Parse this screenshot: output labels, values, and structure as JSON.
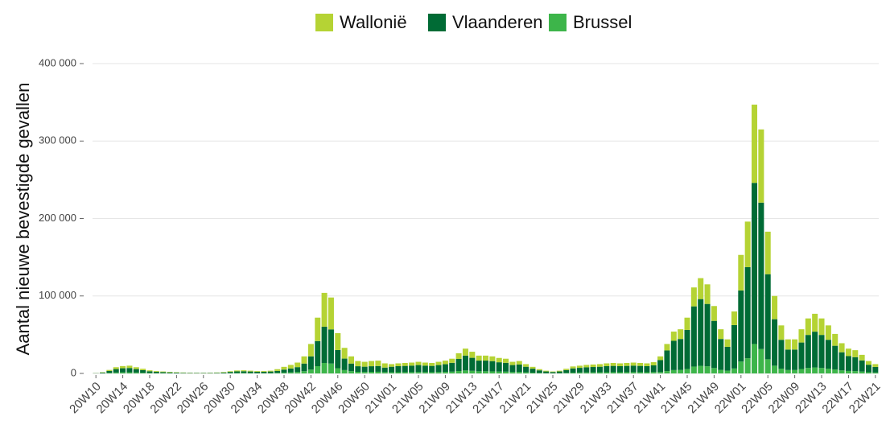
{
  "chart_data": {
    "type": "stacked-bar",
    "y_label": "Aantal nieuwe bevestigde gevallen",
    "categories": [
      "20W10",
      null,
      null,
      null,
      "20W14",
      null,
      null,
      null,
      "20W18",
      null,
      null,
      null,
      "20W22",
      null,
      null,
      null,
      "20W26",
      null,
      null,
      null,
      "20W30",
      null,
      null,
      null,
      "20W34",
      null,
      null,
      null,
      "20W38",
      null,
      null,
      null,
      "20W42",
      null,
      null,
      null,
      "20W46",
      null,
      null,
      null,
      "20W50",
      null,
      null,
      null,
      "21W01",
      null,
      null,
      null,
      "21W05",
      null,
      null,
      null,
      "21W09",
      null,
      null,
      null,
      "21W13",
      null,
      null,
      null,
      "21W17",
      null,
      null,
      null,
      "21W21",
      null,
      null,
      null,
      "21W25",
      null,
      null,
      null,
      "21W29",
      null,
      null,
      null,
      "21W33",
      null,
      null,
      null,
      "21W37",
      null,
      null,
      null,
      "21W41",
      null,
      null,
      null,
      "21W45",
      null,
      null,
      null,
      "21W49",
      null,
      null,
      null,
      "22W01",
      null,
      null,
      null,
      "22W05",
      null,
      null,
      null,
      "22W09",
      null,
      null,
      null,
      "22W13",
      null,
      null,
      null,
      "22W17",
      null,
      null,
      null,
      "22W21"
    ],
    "series": [
      {
        "name": "Wallonië",
        "color": "#b5d334",
        "values": [
          140,
          440,
          1340,
          2400,
          2840,
          3000,
          2400,
          1800,
          1200,
          900,
          740,
          600,
          440,
          360,
          300,
          260,
          260,
          300,
          360,
          540,
          840,
          1140,
          1200,
          1040,
          900,
          900,
          1040,
          2300,
          3560,
          4620,
          5880,
          9240,
          15960,
          30240,
          43680,
          41160,
          21840,
          13860,
          9240,
          6720,
          6300,
          6720,
          6920,
          5460,
          3360,
          3640,
          3780,
          3920,
          4200,
          3920,
          3780,
          4200,
          4620,
          5320,
          7280,
          8960,
          7840,
          6440,
          6440,
          6160,
          5600,
          5320,
          4200,
          4480,
          3360,
          2380,
          1540,
          980,
          700,
          980,
          1680,
          2520,
          2800,
          3080,
          3220,
          3360,
          3640,
          3780,
          3640,
          3780,
          3920,
          3780,
          3640,
          4060,
          4840,
          8360,
          11880,
          12540,
          15840,
          24420,
          27060,
          25300,
          19140,
          12540,
          9680,
          17600,
          45900,
          58800,
          101000,
          94500,
          54900,
          30000,
          18600,
          13200,
          13200,
          17100,
          21300,
          23100,
          21300,
          18600,
          15300,
          11700,
          9600,
          9000,
          7200,
          4800,
          3600
        ]
      },
      {
        "name": "Vlaanderen",
        "color": "#006b35",
        "values": [
          280,
          830,
          2480,
          4400,
          5230,
          5500,
          4400,
          3300,
          2200,
          1650,
          1380,
          1100,
          830,
          660,
          550,
          500,
          500,
          550,
          660,
          990,
          1540,
          2090,
          2200,
          1930,
          1650,
          1650,
          1930,
          2480,
          3830,
          4950,
          6300,
          9900,
          17100,
          32400,
          46800,
          44100,
          23400,
          14850,
          9900,
          7200,
          6750,
          7200,
          7430,
          5850,
          7200,
          7800,
          8100,
          8400,
          9000,
          8400,
          8100,
          9000,
          9900,
          11400,
          15600,
          19200,
          16800,
          13800,
          13800,
          13200,
          12000,
          11400,
          9000,
          9600,
          7200,
          5100,
          3300,
          2100,
          1500,
          2100,
          3600,
          5400,
          6000,
          6600,
          6900,
          7200,
          7800,
          8100,
          7800,
          8100,
          8400,
          8100,
          7800,
          8700,
          15400,
          26600,
          37800,
          39900,
          50400,
          77700,
          86100,
          80500,
          60900,
          39900,
          30800,
          56000,
          91800,
          117600,
          208000,
          189000,
          109800,
          60000,
          37200,
          26400,
          26400,
          34200,
          42600,
          46200,
          42600,
          37200,
          30600,
          23400,
          19200,
          18000,
          14400,
          9600,
          7200
        ]
      },
      {
        "name": "Brussel",
        "color": "#3db54a",
        "values": [
          80,
          230,
          680,
          1200,
          1430,
          1500,
          1200,
          900,
          600,
          450,
          380,
          300,
          230,
          180,
          150,
          140,
          140,
          150,
          180,
          270,
          420,
          570,
          600,
          530,
          450,
          450,
          530,
          720,
          1110,
          1430,
          1820,
          2860,
          4940,
          9360,
          13520,
          12740,
          6760,
          4290,
          2860,
          2080,
          1950,
          2080,
          2150,
          1690,
          1440,
          1560,
          1620,
          1680,
          1800,
          1680,
          1620,
          1800,
          1980,
          2280,
          3120,
          3840,
          3360,
          2760,
          2760,
          2640,
          2400,
          2280,
          1800,
          1920,
          1440,
          1020,
          660,
          420,
          300,
          420,
          720,
          1080,
          1200,
          1320,
          1380,
          1440,
          1560,
          1620,
          1560,
          1620,
          1680,
          1620,
          1560,
          1740,
          1760,
          3040,
          4320,
          4560,
          5760,
          8880,
          9840,
          9200,
          6960,
          4560,
          3520,
          6400,
          15300,
          19600,
          38000,
          31500,
          18300,
          10000,
          6200,
          4400,
          4400,
          5700,
          7100,
          7700,
          7100,
          6200,
          5100,
          3900,
          3200,
          3000,
          2400,
          1600,
          1200
        ]
      }
    ],
    "ylim": [
      0,
      400000
    ],
    "yticks": [
      0,
      {
        "value": 100000,
        "label": "100 000"
      },
      {
        "value": 200000,
        "label": "200 000"
      },
      {
        "value": 300000,
        "label": "300 000"
      },
      {
        "value": 400000,
        "label": "400 000"
      }
    ],
    "grid": true,
    "legend": "top"
  }
}
